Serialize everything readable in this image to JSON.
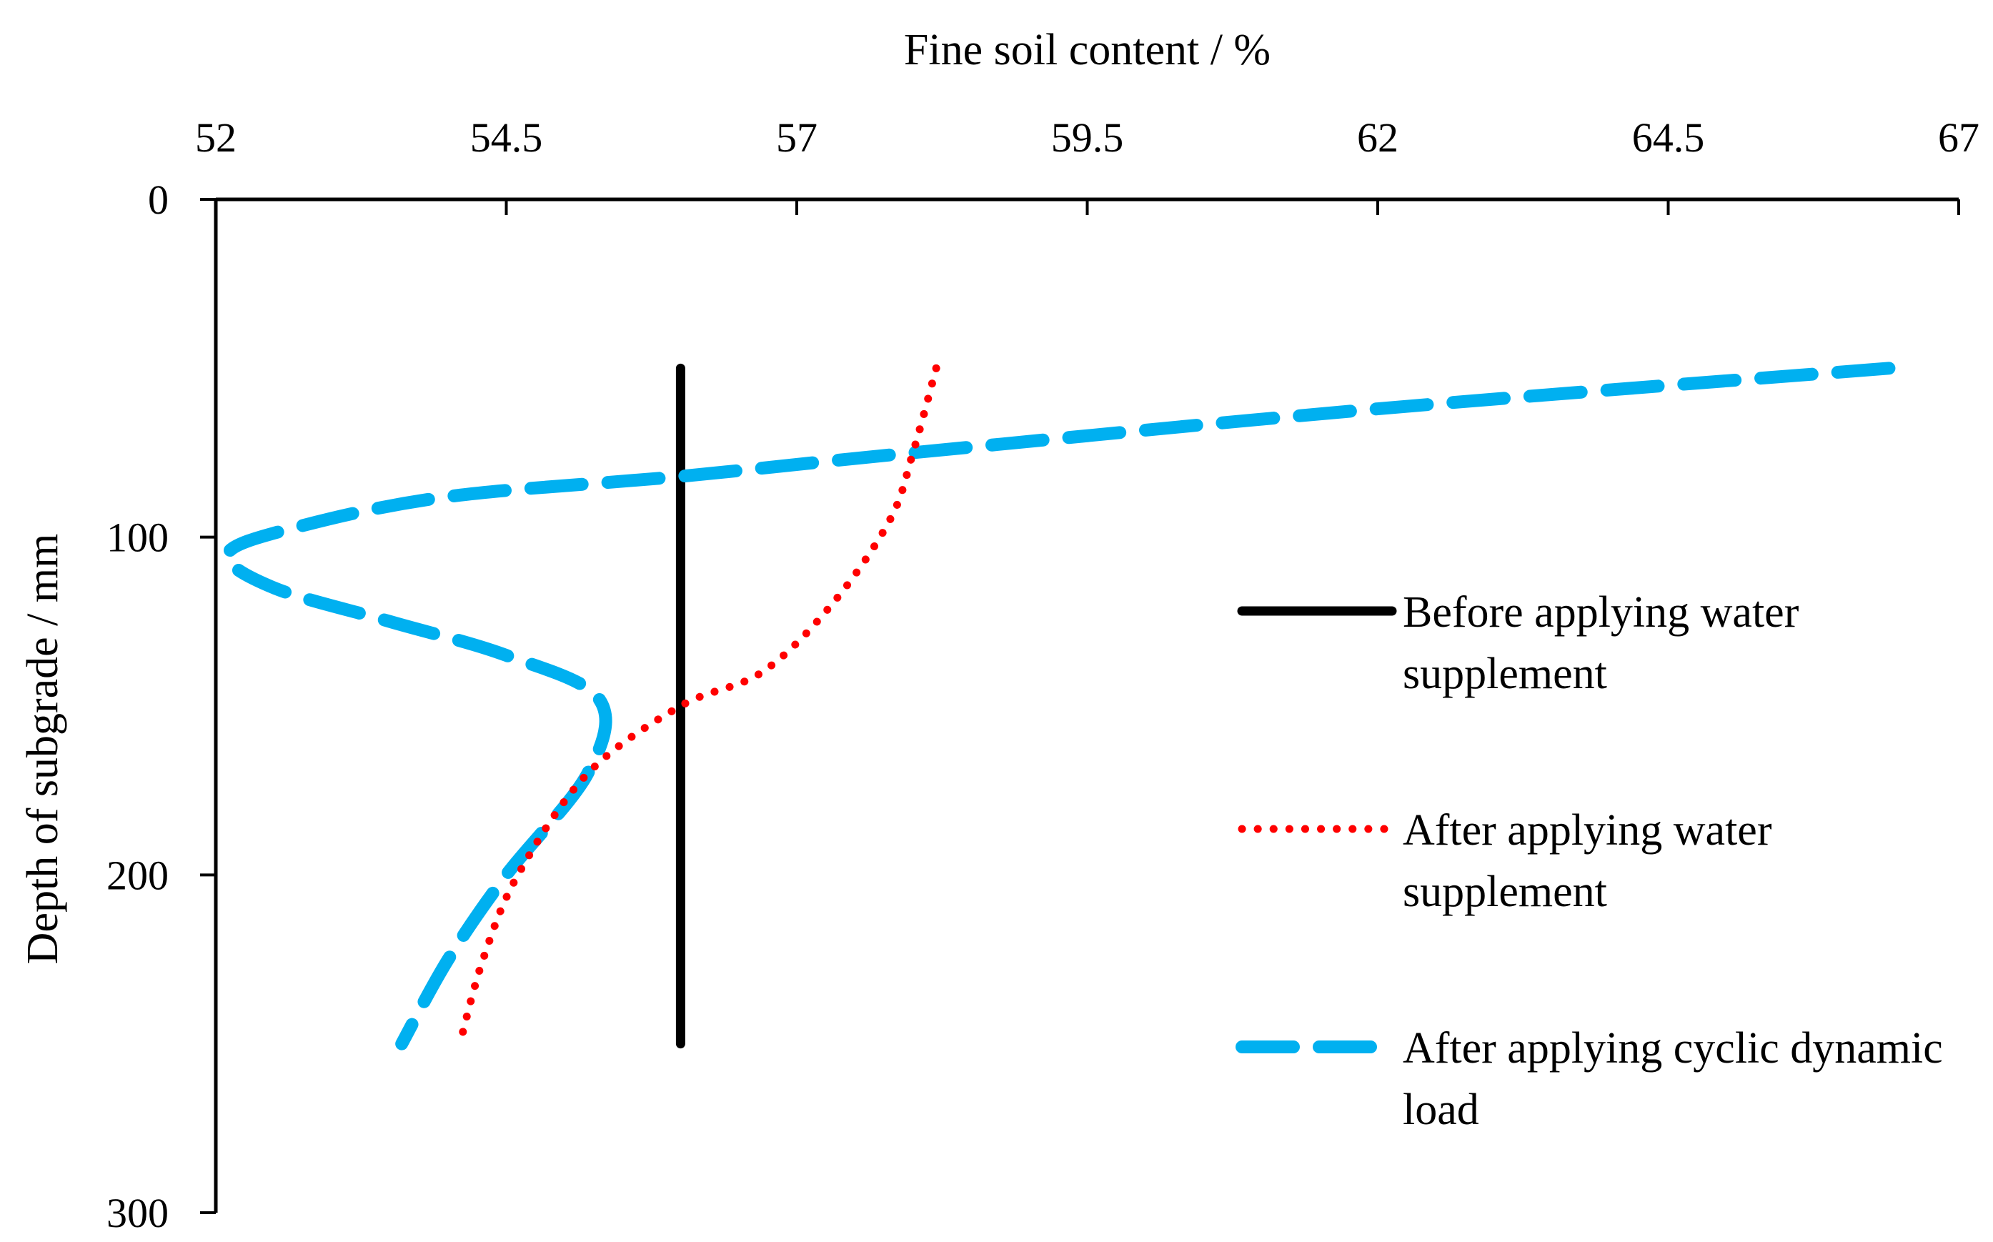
{
  "chart_data": {
    "type": "line",
    "title": "",
    "xlabel": "Fine soil content / %",
    "ylabel": "Depth of subgrade / mm",
    "xlim": [
      52,
      67
    ],
    "ylim": [
      0,
      300
    ],
    "y_inverted": true,
    "x_axis_position": "top",
    "x_ticks": [
      "52",
      "54.5",
      "57",
      "59.5",
      "62",
      "64.5",
      "67"
    ],
    "y_ticks": [
      "0",
      "100",
      "200",
      "300"
    ],
    "grid": false,
    "legend_position": "right",
    "series": [
      {
        "name": "Before applying water supplement",
        "color": "#000000",
        "style": "solid",
        "points": [
          [
            56.0,
            50
          ],
          [
            56.0,
            250
          ]
        ]
      },
      {
        "name": "After applying water supplement",
        "color": "#ff0000",
        "style": "dotted",
        "points": [
          [
            58.2,
            50
          ],
          [
            58.0,
            75
          ],
          [
            57.8,
            95
          ],
          [
            57.3,
            120
          ],
          [
            56.7,
            140
          ],
          [
            56.0,
            150
          ],
          [
            55.2,
            170
          ],
          [
            54.6,
            200
          ],
          [
            54.3,
            225
          ],
          [
            54.1,
            250
          ]
        ]
      },
      {
        "name": "After applying cyclic dynamic load",
        "color": "#00b0f0",
        "style": "dashed",
        "points": [
          [
            66.4,
            50
          ],
          [
            62.0,
            62
          ],
          [
            58.0,
            75
          ],
          [
            56.0,
            82
          ],
          [
            54.0,
            88
          ],
          [
            52.7,
            97
          ],
          [
            52.1,
            105
          ],
          [
            52.5,
            115
          ],
          [
            53.5,
            125
          ],
          [
            54.5,
            135
          ],
          [
            55.3,
            148
          ],
          [
            55.2,
            170
          ],
          [
            54.5,
            200
          ],
          [
            54.0,
            225
          ],
          [
            53.6,
            250
          ]
        ]
      }
    ]
  }
}
